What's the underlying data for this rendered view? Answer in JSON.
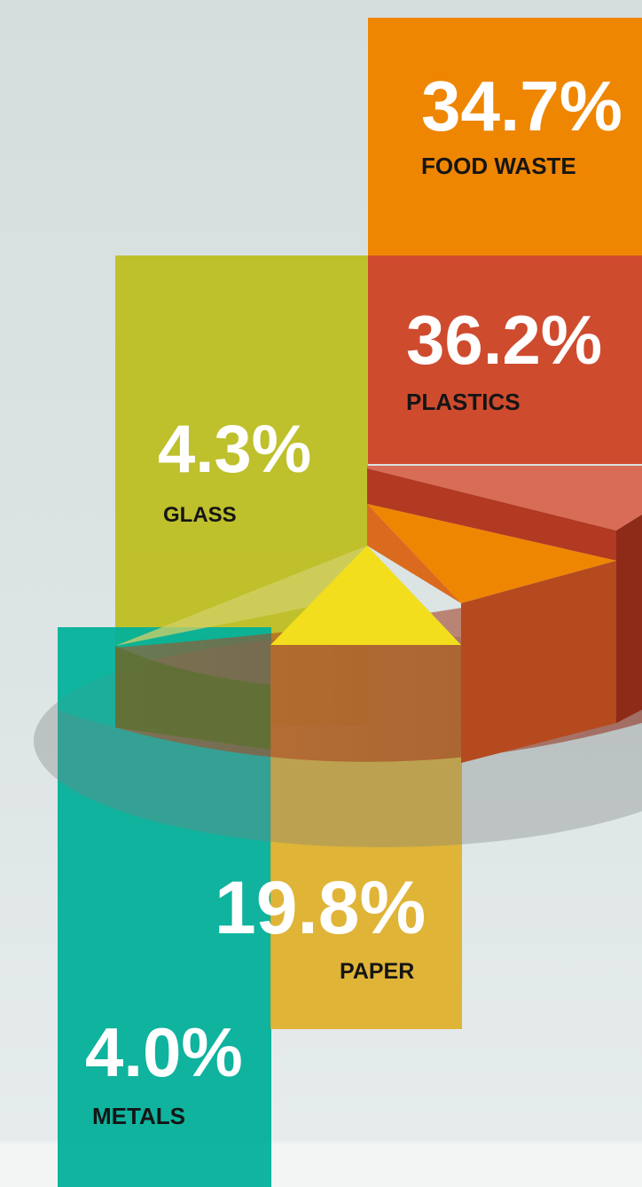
{
  "chart_data": {
    "type": "bar",
    "categories": [
      "FOOD WASTE",
      "PLASTICS",
      "GLASS",
      "PAPER",
      "METALS"
    ],
    "values": [
      34.7,
      36.2,
      4.3,
      19.8,
      4.0
    ],
    "value_labels": [
      "34.7%",
      "36.2%",
      "4.3%",
      "19.8%",
      "4.0%"
    ],
    "unit": "%",
    "colors": [
      "#ef8602",
      "#cf4b2e",
      "#bcbd1c",
      "#dfae24",
      "#03b09a"
    ],
    "legend": "none",
    "grid": false
  }
}
